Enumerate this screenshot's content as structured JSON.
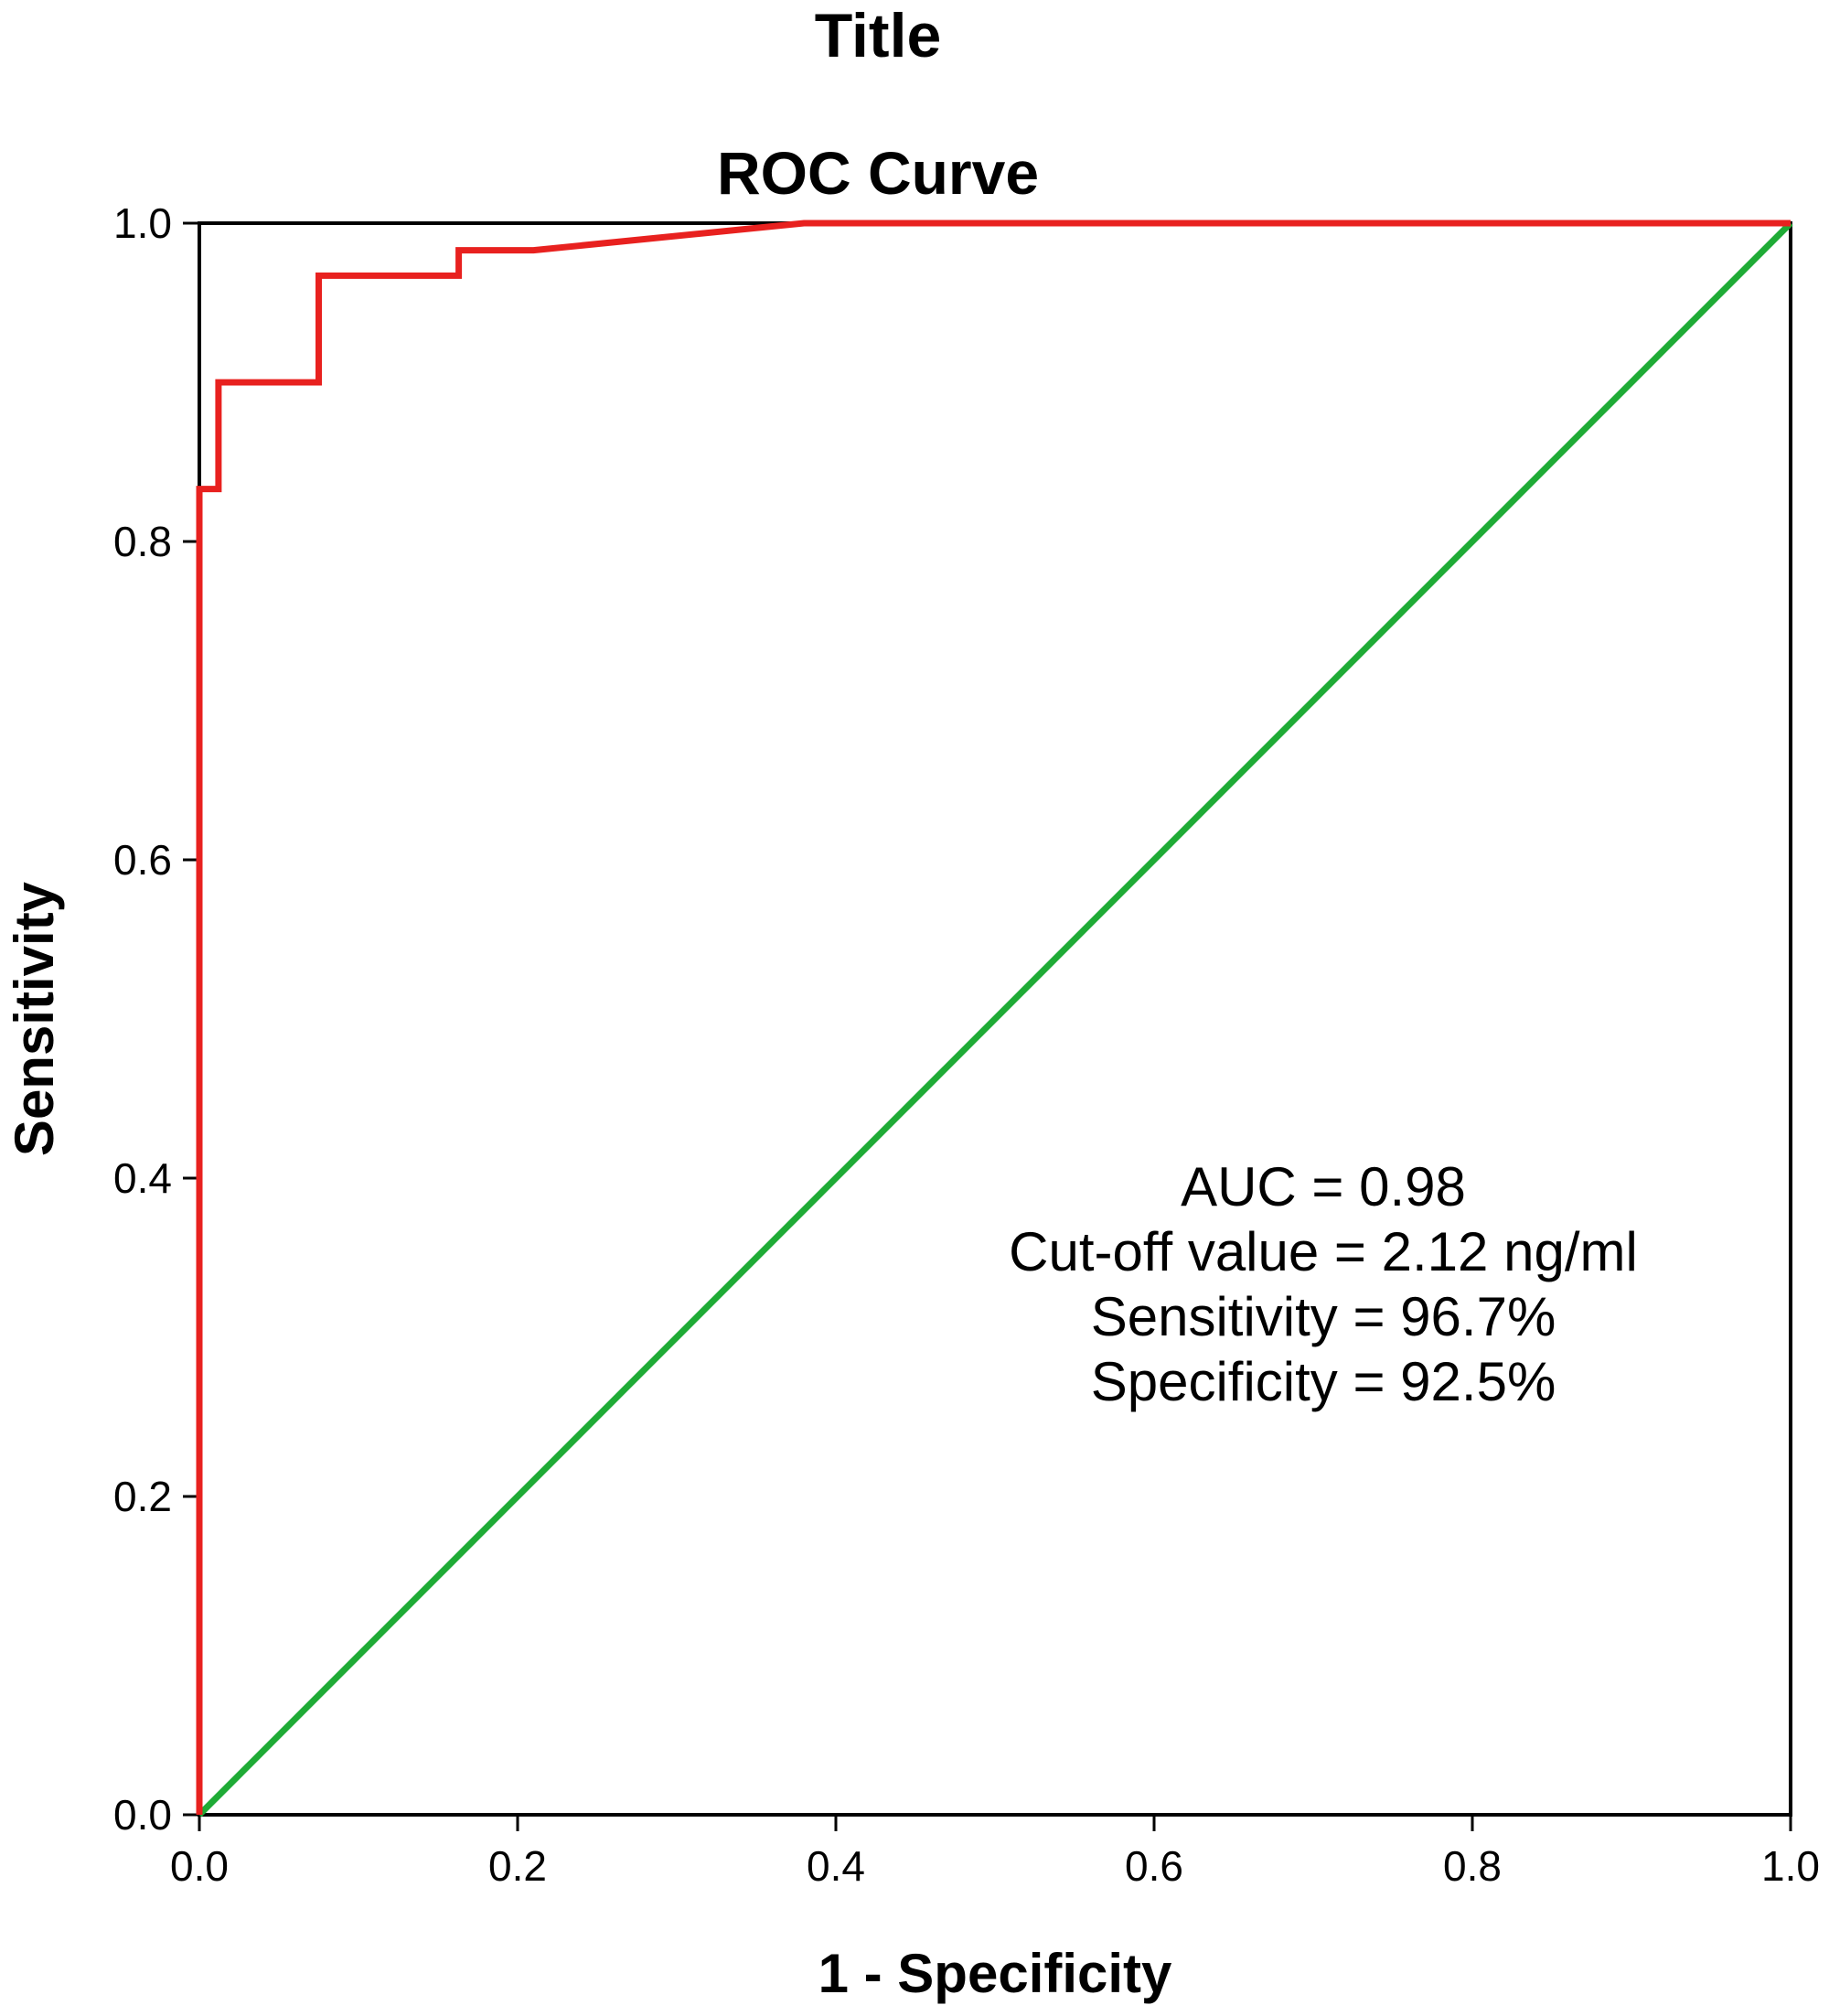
{
  "header": {
    "title": "Title"
  },
  "chart_data": {
    "type": "line",
    "title": "ROC Curve",
    "xlabel": "1 - Specificity",
    "ylabel": "Sensitivity",
    "xlim": [
      0,
      1
    ],
    "ylim": [
      0,
      1
    ],
    "x_ticks": [
      "0.0",
      "0.2",
      "0.4",
      "0.6",
      "0.8",
      "1.0"
    ],
    "y_ticks": [
      "0.0",
      "0.2",
      "0.4",
      "0.6",
      "0.8",
      "1.0"
    ],
    "grid": false,
    "series": [
      {
        "color": "#e8211f",
        "x": [
          0.0,
          0.0,
          0.012,
          0.012,
          0.075,
          0.075,
          0.163,
          0.163,
          0.21,
          0.38,
          1.0
        ],
        "y": [
          0.0,
          0.833,
          0.833,
          0.9,
          0.9,
          0.967,
          0.967,
          0.983,
          0.983,
          1.0,
          1.0
        ]
      },
      {
        "color": "#1fab36",
        "x": [
          0.0,
          1.0
        ],
        "y": [
          0.0,
          1.0
        ]
      }
    ],
    "annotations": [
      "AUC = 0.98",
      "Cut-off value = 2.12 ng/ml",
      "Sensitivity = 96.7%",
      "Specificity = 92.5%"
    ]
  }
}
